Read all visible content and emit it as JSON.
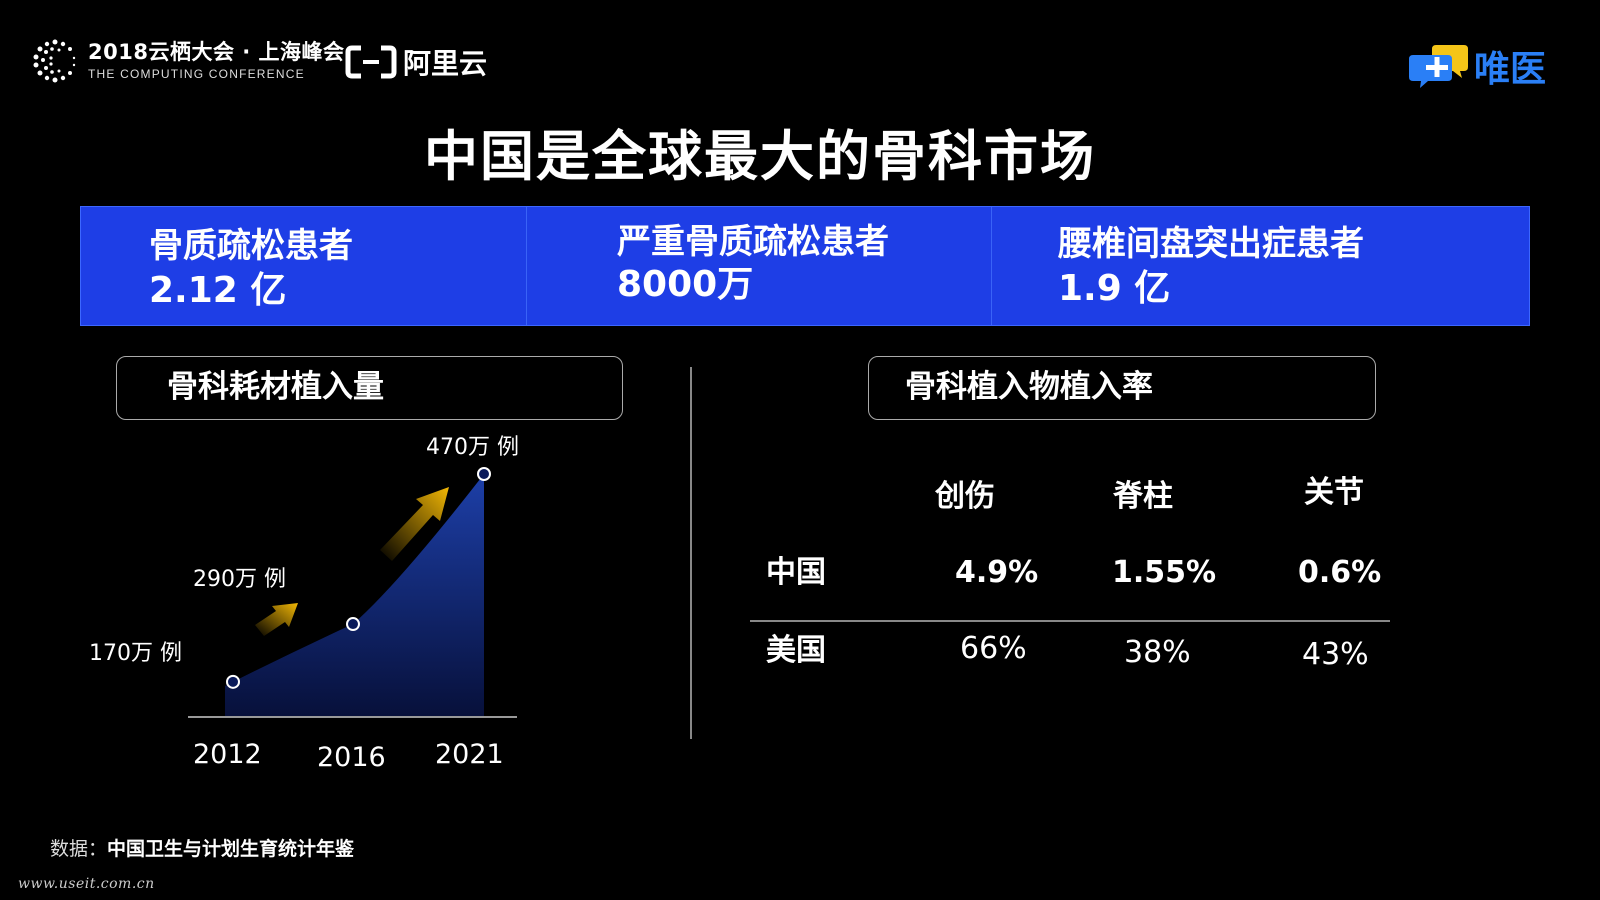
{
  "header": {
    "conference_cn": "2018云栖大会 · 上海峰会",
    "conference_en": "THE COMPUTING CONFERENCE",
    "aliyun_name": "阿里云",
    "weiyi_name": "唯医"
  },
  "title": "中国是全球最大的骨科市场",
  "stats": [
    {
      "label": "骨质疏松患者",
      "value": "2.12 亿"
    },
    {
      "label": "严重骨质疏松患者",
      "value": "8000万"
    },
    {
      "label": "腰椎间盘突出症患者",
      "value": "1.9 亿"
    }
  ],
  "left_section": {
    "title": "骨科耗材植入量"
  },
  "right_section": {
    "title": "骨科植入物植入率"
  },
  "chart_data": {
    "type": "area",
    "title": "骨科耗材植入量",
    "categories": [
      "2012",
      "2016",
      "2021"
    ],
    "values": [
      170,
      290,
      470
    ],
    "unit": "万 例",
    "data_labels": [
      "170万 例",
      "290万 例",
      "470万 例"
    ],
    "ylim": [
      0,
      500
    ],
    "grid": false
  },
  "table": {
    "columns": [
      "创伤",
      "脊柱",
      "关节"
    ],
    "rows": [
      {
        "label": "中国",
        "values": [
          "4.9%",
          "1.55%",
          "0.6%"
        ]
      },
      {
        "label": "美国",
        "values": [
          "66%",
          "38%",
          "43%"
        ]
      }
    ]
  },
  "footer": {
    "source_label": "数据：",
    "source_name": "中国卫生与计划生育统计年鉴",
    "watermark": "www.useit.com.cn"
  },
  "colors": {
    "accent_blue": "#1e3ee6",
    "area_top": "#1d3fa8",
    "arrow_gold": "#f2b705",
    "logo_blue": "#2a7ff6",
    "logo_yellow": "#f5c518"
  }
}
